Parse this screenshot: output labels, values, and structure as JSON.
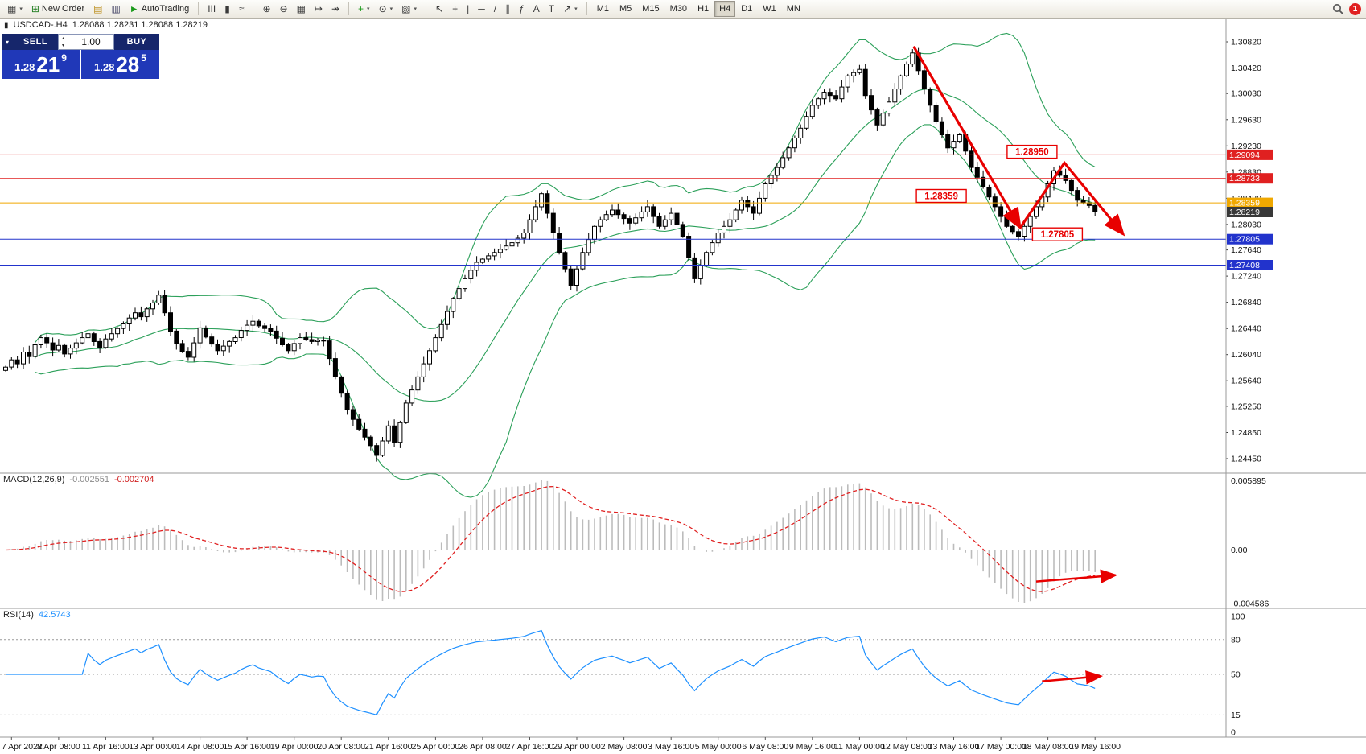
{
  "toolbar": {
    "groups": [
      [
        {
          "name": "chart-window-icon",
          "glyph": "▦",
          "dd": true
        },
        {
          "name": "new-order-button",
          "glyph": "⊞",
          "color": "#1a7a1a",
          "label": "New Order"
        },
        {
          "name": "metaeditor-icon",
          "glyph": "▤",
          "color": "#b8860b"
        },
        {
          "name": "market-watch-icon",
          "glyph": "▥",
          "color": "#446"
        },
        {
          "name": "autotrading-button",
          "glyph": "►",
          "color": "#1a9a1a",
          "label": "AutoTrading"
        }
      ],
      [
        {
          "name": "bar-chart-icon",
          "glyph": "ΙΙΙ"
        },
        {
          "name": "candlestick-chart-icon",
          "glyph": "▮"
        },
        {
          "name": "line-chart-icon",
          "glyph": "≈"
        }
      ],
      [
        {
          "name": "zoom-in-icon",
          "glyph": "⊕"
        },
        {
          "name": "zoom-out-icon",
          "glyph": "⊖"
        },
        {
          "name": "tile-windows-icon",
          "glyph": "▦"
        },
        {
          "name": "auto-scroll-icon",
          "glyph": "↦"
        },
        {
          "name": "chart-shift-icon",
          "glyph": "↠"
        }
      ],
      [
        {
          "name": "indicators-icon",
          "glyph": "+",
          "color": "#1a9a1a",
          "dd": true
        },
        {
          "name": "periods-icon",
          "glyph": "⊙",
          "dd": true
        },
        {
          "name": "templates-icon",
          "glyph": "▧",
          "dd": true
        }
      ],
      [
        {
          "name": "cursor-icon",
          "glyph": "↖"
        },
        {
          "name": "crosshair-icon",
          "glyph": "+"
        },
        {
          "name": "vertical-line-icon",
          "glyph": "|"
        },
        {
          "name": "horizontal-line-icon",
          "glyph": "─"
        },
        {
          "name": "trendline-icon",
          "glyph": "/"
        },
        {
          "name": "channel-icon",
          "glyph": "∥"
        },
        {
          "name": "fibonacci-icon",
          "glyph": "ƒ"
        },
        {
          "name": "text-icon",
          "glyph": "A"
        },
        {
          "name": "text-label-icon",
          "glyph": "T"
        },
        {
          "name": "arrows-tool-icon",
          "glyph": "↗",
          "dd": true
        }
      ]
    ],
    "timeframes": [
      {
        "name": "timeframe-m1",
        "label": "M1"
      },
      {
        "name": "timeframe-m5",
        "label": "M5"
      },
      {
        "name": "timeframe-m15",
        "label": "M15"
      },
      {
        "name": "timeframe-m30",
        "label": "M30"
      },
      {
        "name": "timeframe-h1",
        "label": "H1"
      },
      {
        "name": "timeframe-h4",
        "label": "H4",
        "active": true
      },
      {
        "name": "timeframe-d1",
        "label": "D1"
      },
      {
        "name": "timeframe-w1",
        "label": "W1"
      },
      {
        "name": "timeframe-mn",
        "label": "MN"
      }
    ],
    "notification_count": "1"
  },
  "symbol_info": {
    "icon": "▮",
    "name": "USDCAD-.H4",
    "ohlc": "1.28088 1.28231 1.28088 1.28219"
  },
  "trade_panel": {
    "collapse_icon": "▾",
    "sell_label": "SELL",
    "buy_label": "BUY",
    "volume": "1.00",
    "spin_up": "▴",
    "spin_down": "▾",
    "sell_price_prefix": "1.28",
    "sell_price_main": "21",
    "sell_price_sup": "9",
    "buy_price_prefix": "1.28",
    "buy_price_main": "28",
    "buy_price_sup": "5"
  },
  "price_axis": {
    "labels": [
      "1.30820",
      "1.30420",
      "1.30030",
      "1.29630",
      "1.29230",
      "1.28830",
      "1.28430",
      "1.28030",
      "1.27640",
      "1.27240",
      "1.26840",
      "1.26440",
      "1.26040",
      "1.25640",
      "1.25250",
      "1.24850",
      "1.24450"
    ]
  },
  "macd": {
    "label": "MACD(12,26,9)",
    "value_main": "-0.002551",
    "value_signal": "-0.002704",
    "axis_max": "0.005895",
    "axis_zero": "0.00",
    "axis_min": "-0.004586",
    "fast": 12,
    "slow": 26,
    "signal": 9
  },
  "rsi": {
    "label": "RSI(14)",
    "value": "42.5743",
    "period": 14,
    "levels": [
      100,
      80,
      50,
      15,
      0
    ],
    "dashed_levels": [
      80,
      50,
      15
    ]
  },
  "chart_data": {
    "type": "candlestick",
    "symbol": "USDCAD-",
    "timeframe": "H4",
    "ylim": [
      1.2445,
      1.3082
    ],
    "first_open": 1.258,
    "closes": [
      1.2585,
      1.2596,
      1.259,
      1.2608,
      1.2601,
      1.2619,
      1.263,
      1.2622,
      1.2611,
      1.2618,
      1.2605,
      1.2614,
      1.2622,
      1.263,
      1.2636,
      1.2624,
      1.2615,
      1.2628,
      1.2636,
      1.2644,
      1.2651,
      1.266,
      1.2668,
      1.2662,
      1.2674,
      1.2683,
      1.2695,
      1.2668,
      1.264,
      1.2621,
      1.2609,
      1.26,
      1.2622,
      1.2645,
      1.2631,
      1.262,
      1.261,
      1.2617,
      1.2624,
      1.263,
      1.2641,
      1.2649,
      1.2655,
      1.2648,
      1.2644,
      1.264,
      1.2629,
      1.2619,
      1.261,
      1.2621,
      1.263,
      1.2627,
      1.2624,
      1.2626,
      1.2625,
      1.2598,
      1.257,
      1.2545,
      1.252,
      1.2505,
      1.249,
      1.2478,
      1.2465,
      1.245,
      1.2472,
      1.2495,
      1.247,
      1.25,
      1.253,
      1.255,
      1.257,
      1.259,
      1.261,
      1.263,
      1.265,
      1.267,
      1.269,
      1.2705,
      1.272,
      1.2733,
      1.2745,
      1.275,
      1.2755,
      1.276,
      1.2765,
      1.277,
      1.2775,
      1.2782,
      1.279,
      1.281,
      1.283,
      1.285,
      1.282,
      1.279,
      1.276,
      1.2735,
      1.271,
      1.2735,
      1.276,
      1.278,
      1.28,
      1.281,
      1.2818,
      1.2825,
      1.2818,
      1.2812,
      1.2805,
      1.2813,
      1.2822,
      1.283,
      1.2815,
      1.28,
      1.281,
      1.282,
      1.2803,
      1.2785,
      1.2752,
      1.272,
      1.274,
      1.276,
      1.2775,
      1.279,
      1.28,
      1.281,
      1.2825,
      1.284,
      1.283,
      1.282,
      1.2843,
      1.2865,
      1.2878,
      1.289,
      1.2905,
      1.292,
      1.2935,
      1.295,
      1.2968,
      1.2985,
      1.2995,
      1.3005,
      1.3,
      1.2995,
      1.3013,
      1.303,
      1.3035,
      1.304,
      1.3,
      1.2978,
      1.2955,
      1.2973,
      1.299,
      1.301,
      1.303,
      1.3048,
      1.3065,
      1.3038,
      1.301,
      1.2985,
      1.296,
      1.294,
      1.292,
      1.293,
      1.294,
      1.2915,
      1.289,
      1.2875,
      1.286,
      1.2845,
      1.283,
      1.2815,
      1.28,
      1.2792,
      1.2785,
      1.28,
      1.2815,
      1.283,
      1.2845,
      1.2865,
      1.2885,
      1.2878,
      1.287,
      1.2855,
      1.284,
      1.2836,
      1.2832,
      1.28219
    ],
    "levels": [
      {
        "price": 1.29094,
        "label": "1.29094",
        "color": "#e02020",
        "style": "solid"
      },
      {
        "price": 1.28733,
        "label": "1.28733",
        "color": "#e02020",
        "style": "solid"
      },
      {
        "price": 1.28359,
        "label": "1.28359",
        "color": "#f0a800",
        "style": "solid"
      },
      {
        "price": 1.28219,
        "label": "1.28219",
        "color": "#383838",
        "style": "dashed",
        "current": true
      },
      {
        "price": 1.27805,
        "label": "1.27805",
        "color": "#2233cc",
        "style": "solid"
      },
      {
        "price": 1.27408,
        "label": "1.27408",
        "color": "#2233cc",
        "style": "solid"
      }
    ],
    "annotations": [
      {
        "text": "1.28950",
        "i": 174.3,
        "p": 1.2914
      },
      {
        "text": "1.28359",
        "i": 158.9,
        "p": 1.28465
      },
      {
        "text": "1.27805",
        "i": 178.6,
        "p": 1.27878
      }
    ],
    "arrows": [
      {
        "panel": "main",
        "pts": [
          [
            154.2,
            1.3075
          ],
          [
            172.3,
            1.2798
          ]
        ]
      },
      {
        "panel": "main",
        "pts": [
          [
            172.3,
            1.2798
          ],
          [
            179.8,
            1.2897
          ],
          [
            189.8,
            1.2788
          ]
        ]
      },
      {
        "panel": "macd",
        "pts": [
          [
            175,
            -0.0027
          ],
          [
            188.5,
            -0.00215
          ]
        ]
      },
      {
        "panel": "rsi",
        "pts": [
          [
            176,
            44
          ],
          [
            186,
            48.5
          ]
        ]
      }
    ],
    "time_axis": {
      "first_index": 1,
      "step": 8,
      "labels": [
        "7 Apr 2022",
        "8 Apr 08:00",
        "11 Apr 16:00",
        "13 Apr 00:00",
        "14 Apr 08:00",
        "15 Apr 16:00",
        "19 Apr 00:00",
        "20 Apr 08:00",
        "21 Apr 16:00",
        "25 Apr 00:00",
        "26 Apr 08:00",
        "27 Apr 16:00",
        "29 Apr 00:00",
        "2 May 08:00",
        "3 May 16:00",
        "5 May 00:00",
        "6 May 08:00",
        "9 May 16:00",
        "11 May 00:00",
        "12 May 08:00",
        "13 May 16:00",
        "17 May 00:00",
        "18 May 08:00",
        "19 May 16:00"
      ]
    },
    "indicators": {
      "bollinger_period": 20,
      "bollinger_dev": 2,
      "bollinger_color": "#2ca05a"
    }
  }
}
